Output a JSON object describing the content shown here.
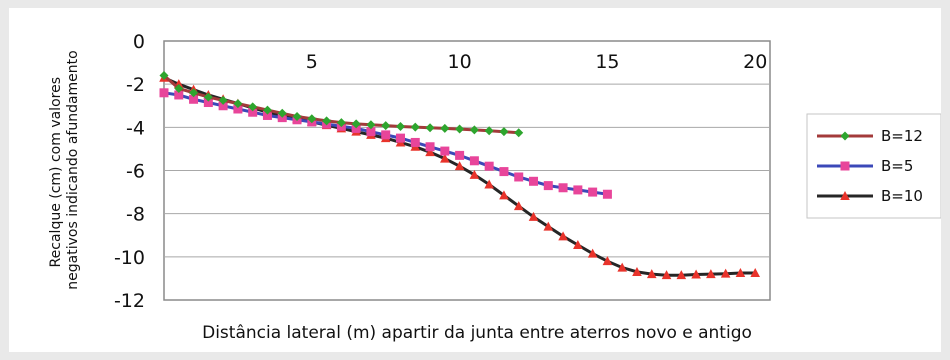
{
  "chart_data": {
    "type": "line",
    "xlabel": "Distância lateral (m) apartir da junta entre aterros novo e antigo",
    "ylabel_lines": [
      "Recalque (cm) com valores",
      "negativos indicando afundamento"
    ],
    "xlim": [
      0,
      20.5
    ],
    "ylim": [
      -12,
      0
    ],
    "x_ticks": [
      5,
      10,
      15,
      20
    ],
    "y_ticks": [
      0,
      -2,
      -4,
      -6,
      -8,
      -10,
      -12
    ],
    "grid": "horizontal",
    "legend_position": "right",
    "series": [
      {
        "name": "B=12",
        "color": "#a33a3a",
        "marker": "diamond",
        "marker_color": "#2ea52e",
        "x": [
          0,
          0.5,
          1,
          1.5,
          2,
          2.5,
          3,
          3.5,
          4,
          4.5,
          5,
          5.5,
          6,
          6.5,
          7,
          7.5,
          8,
          8.5,
          9,
          9.5,
          10,
          10.5,
          11,
          11.5,
          12
        ],
        "y": [
          -1.6,
          -2.2,
          -2.4,
          -2.6,
          -2.75,
          -2.9,
          -3.05,
          -3.2,
          -3.35,
          -3.5,
          -3.6,
          -3.7,
          -3.78,
          -3.84,
          -3.88,
          -3.92,
          -3.96,
          -3.99,
          -4.02,
          -4.05,
          -4.08,
          -4.12,
          -4.16,
          -4.2,
          -4.25
        ]
      },
      {
        "name": "B=5",
        "color": "#3b48b8",
        "marker": "square",
        "marker_color": "#e8459a",
        "x": [
          0,
          0.5,
          1,
          1.5,
          2,
          2.5,
          3,
          3.5,
          4,
          4.5,
          5,
          5.5,
          6,
          6.5,
          7,
          7.5,
          8,
          8.5,
          9,
          9.5,
          10,
          10.5,
          11,
          11.5,
          12,
          12.5,
          13,
          13.5,
          14,
          14.5,
          15
        ],
        "y": [
          -2.4,
          -2.5,
          -2.7,
          -2.85,
          -3.0,
          -3.15,
          -3.3,
          -3.45,
          -3.55,
          -3.65,
          -3.75,
          -3.85,
          -3.95,
          -4.05,
          -4.2,
          -4.35,
          -4.5,
          -4.7,
          -4.9,
          -5.1,
          -5.3,
          -5.55,
          -5.8,
          -6.05,
          -6.3,
          -6.5,
          -6.7,
          -6.8,
          -6.9,
          -7.0,
          -7.1
        ]
      },
      {
        "name": "B=10",
        "color": "#262626",
        "marker": "triangle",
        "marker_color": "#e8332b",
        "x": [
          0,
          0.5,
          1,
          1.5,
          2,
          2.5,
          3,
          3.5,
          4,
          4.5,
          5,
          5.5,
          6,
          6.5,
          7,
          7.5,
          8,
          8.5,
          9,
          9.5,
          10,
          10.5,
          11,
          11.5,
          12,
          12.5,
          13,
          13.5,
          14,
          14.5,
          15,
          15.5,
          16,
          16.5,
          17,
          17.5,
          18,
          18.5,
          19,
          19.5,
          20
        ],
        "y": [
          -1.7,
          -2.0,
          -2.25,
          -2.5,
          -2.7,
          -2.9,
          -3.1,
          -3.3,
          -3.45,
          -3.6,
          -3.75,
          -3.9,
          -4.05,
          -4.2,
          -4.35,
          -4.5,
          -4.7,
          -4.9,
          -5.15,
          -5.45,
          -5.8,
          -6.2,
          -6.65,
          -7.15,
          -7.65,
          -8.15,
          -8.6,
          -9.05,
          -9.45,
          -9.85,
          -10.2,
          -10.5,
          -10.7,
          -10.8,
          -10.85,
          -10.85,
          -10.82,
          -10.8,
          -10.78,
          -10.75,
          -10.75
        ]
      }
    ]
  }
}
